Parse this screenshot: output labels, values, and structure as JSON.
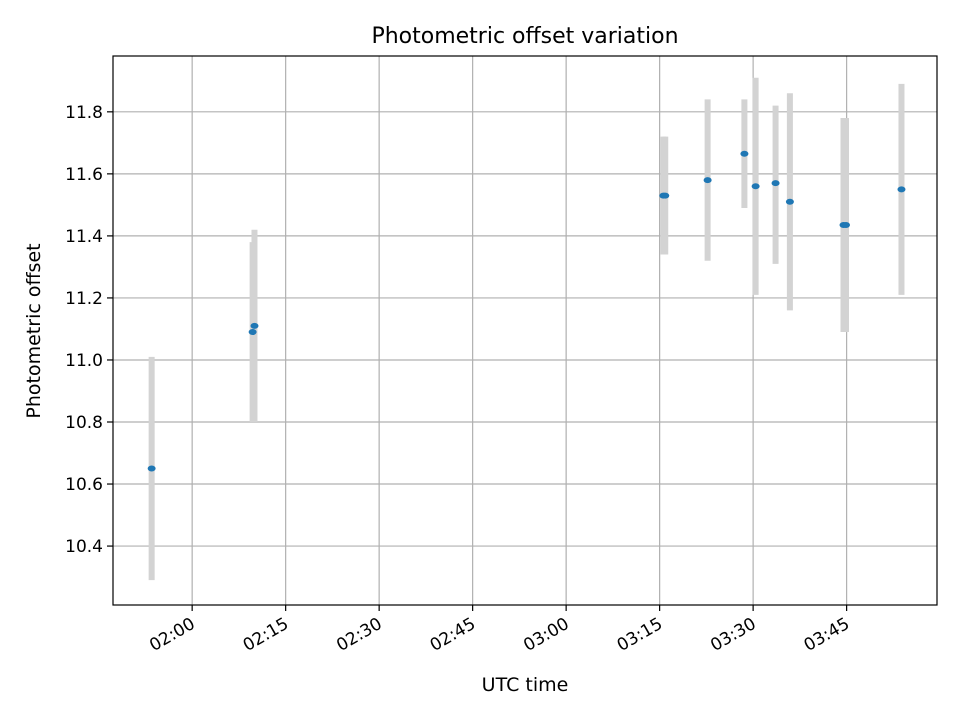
{
  "chart_data": {
    "type": "scatter",
    "title": "Photometric offset variation",
    "xlabel": "UTC time",
    "ylabel": "Photometric offset",
    "x_ticks": [
      "02:00",
      "02:15",
      "02:30",
      "02:45",
      "03:00",
      "03:15",
      "03:30",
      "03:45"
    ],
    "x_tick_minutes": [
      120,
      135,
      150,
      165,
      180,
      195,
      210,
      225
    ],
    "y_ticks": [
      10.4,
      10.6,
      10.8,
      11.0,
      11.2,
      11.4,
      11.6,
      11.8
    ],
    "xlim_minutes": [
      107.3,
      239.5
    ],
    "ylim": [
      10.21,
      11.98
    ],
    "grid": true,
    "colors": {
      "points": "#1f77b4",
      "error_bars": "#d3d3d3",
      "grid": "#b0b0b0"
    },
    "points": [
      {
        "t_minutes": 113.5,
        "y": 10.65,
        "err_low": 10.29,
        "err_high": 11.01
      },
      {
        "t_minutes": 129.7,
        "y": 11.09,
        "err_low": 10.8,
        "err_high": 11.38
      },
      {
        "t_minutes": 130.0,
        "y": 11.11,
        "err_low": 10.8,
        "err_high": 11.42
      },
      {
        "t_minutes": 195.6,
        "y": 11.53,
        "err_low": 11.34,
        "err_high": 11.72
      },
      {
        "t_minutes": 195.9,
        "y": 11.53,
        "err_low": 11.34,
        "err_high": 11.72
      },
      {
        "t_minutes": 202.7,
        "y": 11.58,
        "err_low": 11.32,
        "err_high": 11.84
      },
      {
        "t_minutes": 208.6,
        "y": 11.665,
        "err_low": 11.49,
        "err_high": 11.84
      },
      {
        "t_minutes": 210.4,
        "y": 11.56,
        "err_low": 11.21,
        "err_high": 11.91
      },
      {
        "t_minutes": 213.6,
        "y": 11.57,
        "err_low": 11.31,
        "err_high": 11.82
      },
      {
        "t_minutes": 215.9,
        "y": 11.51,
        "err_low": 11.16,
        "err_high": 11.86
      },
      {
        "t_minutes": 224.5,
        "y": 11.435,
        "err_low": 11.09,
        "err_high": 11.78
      },
      {
        "t_minutes": 224.9,
        "y": 11.435,
        "err_low": 11.09,
        "err_high": 11.78
      },
      {
        "t_minutes": 233.8,
        "y": 11.55,
        "err_low": 11.21,
        "err_high": 11.89
      }
    ]
  }
}
